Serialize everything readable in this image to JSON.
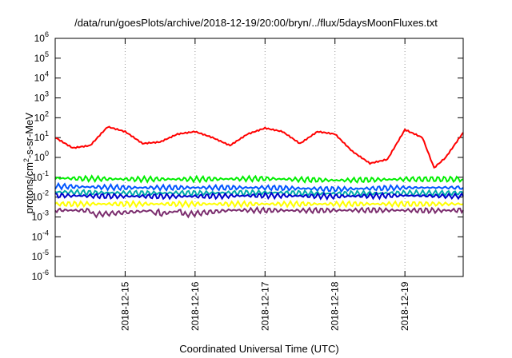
{
  "chart_data": {
    "type": "line",
    "title": "/data/run/goesPlots/archive/2018-12-19/20:00/bryn/../flux/5daysMoonFluxes.txt",
    "xlabel": "Coordinated Universal Time (UTC)",
    "ylabel": "protons/cm²-s-sr-MeV",
    "ylabel_parts": [
      "protons/cm",
      "2",
      "-s-sr-MeV"
    ],
    "xlim": [
      "2018-12-14 00:00",
      "2018-12-19 20:00"
    ],
    "ylim": [
      1e-06,
      1000000.0
    ],
    "yscale": "log",
    "grid": true,
    "x_ticks": [
      "2018-12-15",
      "2018-12-16",
      "2018-12-17",
      "2018-12-18",
      "2018-12-19"
    ],
    "y_ticks": [
      {
        "value": 1e-06,
        "label": "10",
        "exp": "-6"
      },
      {
        "value": 1e-05,
        "label": "10",
        "exp": "-5"
      },
      {
        "value": 0.0001,
        "label": "10",
        "exp": "-4"
      },
      {
        "value": 0.001,
        "label": "10",
        "exp": "-3"
      },
      {
        "value": 0.01,
        "label": "10",
        "exp": "-2"
      },
      {
        "value": 0.1,
        "label": "10",
        "exp": "-1"
      },
      {
        "value": 1,
        "label": "10",
        "exp": "0"
      },
      {
        "value": 10.0,
        "label": "10",
        "exp": "1"
      },
      {
        "value": 100.0,
        "label": "10",
        "exp": "2"
      },
      {
        "value": 1000.0,
        "label": "10",
        "exp": "3"
      },
      {
        "value": 10000.0,
        "label": "10",
        "exp": "4"
      },
      {
        "value": 100000.0,
        "label": "10",
        "exp": "5"
      },
      {
        "value": 1000000.0,
        "label": "10",
        "exp": "6"
      }
    ],
    "series": [
      {
        "color": "#ff0000",
        "x": [
          "2018-12-14 00:00",
          "2018-12-14 06:00",
          "2018-12-14 12:00",
          "2018-12-14 18:00",
          "2018-12-15 00:00",
          "2018-12-15 06:00",
          "2018-12-15 12:00",
          "2018-12-15 18:00",
          "2018-12-16 00:00",
          "2018-12-16 06:00",
          "2018-12-16 12:00",
          "2018-12-16 18:00",
          "2018-12-17 00:00",
          "2018-12-17 06:00",
          "2018-12-17 12:00",
          "2018-12-17 18:00",
          "2018-12-18 00:00",
          "2018-12-18 06:00",
          "2018-12-18 12:00",
          "2018-12-18 18:00",
          "2018-12-19 00:00",
          "2018-12-19 06:00",
          "2018-12-19 10:00",
          "2018-12-19 14:00",
          "2018-12-19 20:00"
        ],
        "y": [
          10,
          3,
          4,
          35,
          20,
          5,
          6,
          15,
          20,
          10,
          4,
          15,
          30,
          20,
          5,
          20,
          15,
          2,
          0.5,
          0.8,
          25,
          10,
          0.3,
          1,
          18
        ]
      },
      {
        "color": "#00ee00",
        "x": [
          "2018-12-14 00:00",
          "2018-12-15 00:00",
          "2018-12-16 00:00",
          "2018-12-17 00:00",
          "2018-12-18 00:00",
          "2018-12-19 00:00",
          "2018-12-19 20:00"
        ],
        "y": [
          0.09,
          0.08,
          0.08,
          0.085,
          0.07,
          0.08,
          0.08
        ]
      },
      {
        "color": "#0055ff",
        "x": [
          "2018-12-14 00:00",
          "2018-12-15 00:00",
          "2018-12-16 00:00",
          "2018-12-17 00:00",
          "2018-12-18 00:00",
          "2018-12-19 00:00",
          "2018-12-19 20:00"
        ],
        "y": [
          0.035,
          0.03,
          0.03,
          0.03,
          0.025,
          0.03,
          0.03
        ]
      },
      {
        "color": "#00aaaa",
        "x": [
          "2018-12-14 00:00",
          "2018-12-15 00:00",
          "2018-12-16 00:00",
          "2018-12-17 00:00",
          "2018-12-18 00:00",
          "2018-12-19 00:00",
          "2018-12-19 20:00"
        ],
        "y": [
          0.018,
          0.016,
          0.016,
          0.017,
          0.015,
          0.016,
          0.016
        ]
      },
      {
        "color": "#0000cc",
        "x": [
          "2018-12-14 00:00",
          "2018-12-15 00:00",
          "2018-12-16 00:00",
          "2018-12-17 00:00",
          "2018-12-18 00:00",
          "2018-12-19 00:00",
          "2018-12-19 20:00"
        ],
        "y": [
          0.012,
          0.011,
          0.011,
          0.012,
          0.011,
          0.012,
          0.011
        ]
      },
      {
        "color": "#ffff00",
        "x": [
          "2018-12-14 00:00",
          "2018-12-15 00:00",
          "2018-12-16 00:00",
          "2018-12-17 00:00",
          "2018-12-18 00:00",
          "2018-12-19 00:00",
          "2018-12-19 20:00"
        ],
        "y": [
          0.0045,
          0.0045,
          0.0045,
          0.0045,
          0.0045,
          0.0045,
          0.0045
        ]
      },
      {
        "color": "#7b2d6e",
        "x": [
          "2018-12-14 00:00",
          "2018-12-14 12:00",
          "2018-12-14 13:00",
          "2018-12-15 09:00",
          "2018-12-15 10:00",
          "2018-12-15 11:00",
          "2018-12-15 12:00",
          "2018-12-15 19:00",
          "2018-12-15 20:00",
          "2018-12-16 12:00",
          "2018-12-17 12:00",
          "2018-12-18 12:00",
          "2018-12-19 12:00",
          "2018-12-19 20:00"
        ],
        "y": [
          0.0022,
          0.0021,
          0.0013,
          0.0021,
          0.0013,
          0.0021,
          0.0014,
          0.0021,
          0.0013,
          0.0022,
          0.0021,
          0.0022,
          0.0021,
          0.0022
        ]
      }
    ]
  }
}
